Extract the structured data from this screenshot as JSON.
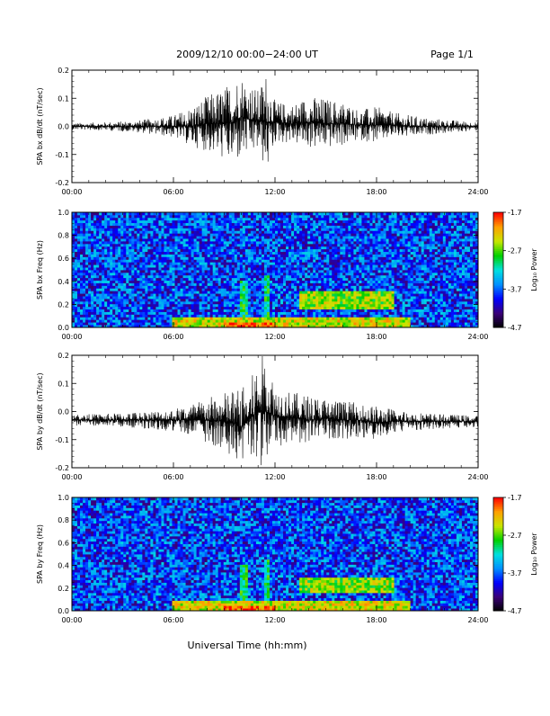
{
  "header": {
    "title": "2009/12/10   00:00−24:00 UT",
    "page": "Page 1/1"
  },
  "footer": {
    "xlabel": "Universal Time (hh:mm)"
  },
  "colorscale": {
    "label": "Log₁₀ Power",
    "ticks": [
      "-1.7",
      "-2.7",
      "-3.7",
      "-4.7"
    ],
    "tick_values": [
      -1.7,
      -2.7,
      -3.7,
      -4.7
    ],
    "range": [
      -4.7,
      -1.7
    ],
    "colors": [
      "#000000",
      "#3a0078",
      "#0000ff",
      "#0090ff",
      "#00e0e0",
      "#00d000",
      "#c8e600",
      "#ffa000",
      "#ff0000"
    ]
  },
  "chart_data": [
    {
      "type": "line",
      "ylabel": "SPA bx dB/dt (nT/sec)",
      "xlim": [
        0,
        24
      ],
      "ylim": [
        -0.2,
        0.2
      ],
      "xticks": [
        "00:00",
        "06:00",
        "12:00",
        "18:00",
        "24:00"
      ],
      "yticks": [
        "0.2",
        "0.1",
        "0.0",
        "-0.1",
        "-0.2"
      ],
      "ytick_values": [
        0.2,
        0.1,
        0.0,
        -0.1,
        -0.2
      ],
      "series": [
        {
          "x": [
            0,
            2,
            4,
            6,
            7,
            8,
            9,
            9.5,
            10,
            10.5,
            11,
            11.5,
            12,
            13,
            14,
            15,
            16,
            17,
            18,
            19,
            20,
            21,
            22,
            23,
            24
          ],
          "max": [
            0.012,
            0.015,
            0.022,
            0.04,
            0.07,
            0.11,
            0.14,
            0.17,
            0.19,
            0.16,
            0.13,
            0.2,
            0.09,
            0.08,
            0.11,
            0.1,
            0.09,
            0.06,
            0.07,
            0.05,
            0.04,
            0.03,
            0.025,
            0.02,
            0.015
          ],
          "min": [
            -0.012,
            -0.015,
            -0.022,
            -0.04,
            -0.07,
            -0.09,
            -0.12,
            -0.14,
            -0.12,
            -0.11,
            -0.09,
            -0.17,
            -0.06,
            -0.06,
            -0.08,
            -0.08,
            -0.07,
            -0.05,
            -0.06,
            -0.04,
            -0.04,
            -0.03,
            -0.025,
            -0.02,
            -0.015
          ]
        }
      ]
    },
    {
      "type": "heatmap",
      "ylabel": "SPA bx Freq (Hz)",
      "xlim": [
        0,
        24
      ],
      "ylim": [
        0,
        1.0
      ],
      "xticks": [
        "00:00",
        "06:00",
        "12:00",
        "18:00",
        "24:00"
      ],
      "yticks": [
        "1.0",
        "0.8",
        "0.6",
        "0.4",
        "0.2",
        "0.0"
      ],
      "ytick_values": [
        1.0,
        0.8,
        0.6,
        0.4,
        0.2,
        0.0
      ],
      "background_log_power": -3.8,
      "features": [
        {
          "t0": 6,
          "t1": 20,
          "f0": 0.0,
          "f1": 0.1,
          "level": -2.4
        },
        {
          "t0": 9,
          "t1": 12,
          "f0": 0.0,
          "f1": 0.05,
          "level": -1.9
        },
        {
          "t0": 13.5,
          "t1": 19,
          "f0": 0.15,
          "f1": 0.32,
          "level": -2.6
        },
        {
          "t0": 10,
          "t1": 10.4,
          "f0": 0.0,
          "f1": 0.4,
          "level": -3.0
        },
        {
          "t0": 11.3,
          "t1": 11.6,
          "f0": 0.0,
          "f1": 0.45,
          "level": -3.0
        }
      ]
    },
    {
      "type": "line",
      "ylabel": "SPA by dB/dt (nT/sec)",
      "xlim": [
        0,
        24
      ],
      "ylim": [
        -0.2,
        0.2
      ],
      "xticks": [
        "00:00",
        "06:00",
        "12:00",
        "18:00",
        "24:00"
      ],
      "yticks": [
        "0.2",
        "0.1",
        "0.0",
        "-0.1",
        "-0.2"
      ],
      "ytick_values": [
        0.2,
        0.1,
        0.0,
        -0.1,
        -0.2
      ],
      "series": [
        {
          "x": [
            0,
            2,
            4,
            6,
            7,
            8,
            9,
            9.5,
            10,
            10.5,
            11,
            11.5,
            12,
            13,
            14,
            15,
            16,
            17,
            18,
            19,
            20,
            21,
            22,
            23,
            24
          ],
          "max": [
            -0.01,
            -0.008,
            0.0,
            0.01,
            0.03,
            0.05,
            0.07,
            0.08,
            0.09,
            0.1,
            0.2,
            0.2,
            0.1,
            0.07,
            0.06,
            0.05,
            0.04,
            0.03,
            0.02,
            0.01,
            0.0,
            -0.005,
            -0.01,
            -0.012,
            -0.015
          ],
          "min": [
            -0.05,
            -0.052,
            -0.06,
            -0.07,
            -0.09,
            -0.11,
            -0.14,
            -0.16,
            -0.2,
            -0.15,
            -0.2,
            -0.2,
            -0.13,
            -0.11,
            -0.12,
            -0.1,
            -0.1,
            -0.09,
            -0.1,
            -0.08,
            -0.07,
            -0.065,
            -0.06,
            -0.058,
            -0.055
          ]
        }
      ]
    },
    {
      "type": "heatmap",
      "ylabel": "SPA by Freq (Hz)",
      "xlim": [
        0,
        24
      ],
      "ylim": [
        0,
        1.0
      ],
      "xticks": [
        "00:00",
        "06:00",
        "12:00",
        "18:00",
        "24:00"
      ],
      "yticks": [
        "1.0",
        "0.8",
        "0.6",
        "0.4",
        "0.2",
        "0.0"
      ],
      "ytick_values": [
        1.0,
        0.8,
        0.6,
        0.4,
        0.2,
        0.0
      ],
      "background_log_power": -3.8,
      "features": [
        {
          "t0": 6,
          "t1": 20,
          "f0": 0.0,
          "f1": 0.1,
          "level": -2.4
        },
        {
          "t0": 9,
          "t1": 12,
          "f0": 0.0,
          "f1": 0.05,
          "level": -1.9
        },
        {
          "t0": 13.5,
          "t1": 19,
          "f0": 0.15,
          "f1": 0.3,
          "level": -2.6
        },
        {
          "t0": 10,
          "t1": 10.4,
          "f0": 0.0,
          "f1": 0.4,
          "level": -3.0
        },
        {
          "t0": 11.3,
          "t1": 11.6,
          "f0": 0.0,
          "f1": 0.45,
          "level": -3.0
        }
      ]
    }
  ]
}
